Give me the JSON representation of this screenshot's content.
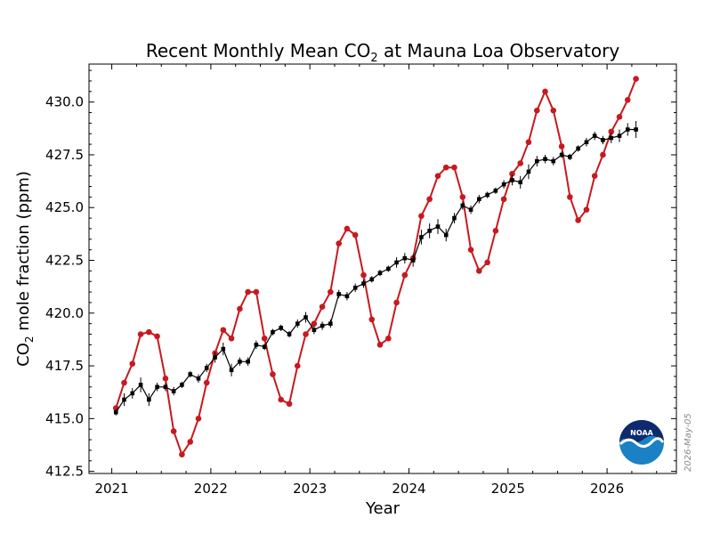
{
  "chart_data": {
    "type": "line",
    "title": {
      "prefix": "Recent Monthly Mean CO",
      "subscript": "2",
      "suffix": " at Mauna Loa Observatory"
    },
    "xlabel": "Year",
    "ylabel": {
      "prefix": "CO",
      "subscript": "2",
      "suffix": " mole fraction (ppm)"
    },
    "xlim": [
      2020.77,
      2026.7
    ],
    "ylim": [
      412.4,
      431.8
    ],
    "x_ticks": [
      2021,
      2022,
      2023,
      2024,
      2025,
      2026
    ],
    "x_tick_labels": [
      "2021",
      "2022",
      "2023",
      "2024",
      "2025",
      "2026"
    ],
    "y_ticks": [
      412.5,
      415.0,
      417.5,
      420.0,
      422.5,
      425.0,
      427.5,
      430.0
    ],
    "y_tick_labels": [
      "412.5",
      "415.0",
      "417.5",
      "420.0",
      "422.5",
      "425.0",
      "427.5",
      "430.0"
    ],
    "grid": false,
    "legend": "none",
    "date_stamp": "2026-May-05",
    "logo_text": "NOAA",
    "series": [
      {
        "color": "#c8191e",
        "marker": "circle",
        "x": [
          2021.042,
          2021.125,
          2021.208,
          2021.292,
          2021.375,
          2021.458,
          2021.542,
          2021.625,
          2021.708,
          2021.792,
          2021.875,
          2021.958,
          2022.042,
          2022.125,
          2022.208,
          2022.292,
          2022.375,
          2022.458,
          2022.542,
          2022.625,
          2022.708,
          2022.792,
          2022.875,
          2022.958,
          2023.042,
          2023.125,
          2023.208,
          2023.292,
          2023.375,
          2023.458,
          2023.542,
          2023.625,
          2023.708,
          2023.792,
          2023.875,
          2023.958,
          2024.042,
          2024.125,
          2024.208,
          2024.292,
          2024.375,
          2024.458,
          2024.542,
          2024.625,
          2024.708,
          2024.792,
          2024.875,
          2024.958,
          2025.042,
          2025.125,
          2025.208,
          2025.292,
          2025.375,
          2025.458,
          2025.542,
          2025.625,
          2025.708,
          2025.792,
          2025.875,
          2025.958,
          2026.042,
          2026.125,
          2026.208,
          2026.292
        ],
        "values": [
          415.5,
          416.7,
          417.6,
          419.0,
          419.1,
          418.9,
          416.9,
          414.4,
          413.3,
          413.9,
          415.0,
          416.7,
          418.1,
          419.2,
          418.8,
          420.2,
          421.0,
          421.0,
          418.8,
          417.1,
          415.9,
          415.7,
          417.5,
          419.0,
          419.5,
          420.3,
          421.0,
          423.3,
          424.0,
          423.7,
          421.8,
          419.7,
          418.5,
          418.8,
          420.5,
          421.8,
          422.6,
          424.6,
          425.4,
          426.5,
          426.9,
          426.9,
          425.5,
          423.0,
          422.0,
          422.4,
          423.9,
          425.4,
          426.6,
          427.1,
          428.1,
          429.6,
          430.5,
          429.6,
          427.9,
          425.5,
          424.4,
          424.9,
          426.5,
          427.5,
          428.6,
          429.3,
          430.1,
          431.1
        ]
      },
      {
        "color": "#000000",
        "marker": "square",
        "x": [
          2021.042,
          2021.125,
          2021.208,
          2021.292,
          2021.375,
          2021.458,
          2021.542,
          2021.625,
          2021.708,
          2021.792,
          2021.875,
          2021.958,
          2022.042,
          2022.125,
          2022.208,
          2022.292,
          2022.375,
          2022.458,
          2022.542,
          2022.625,
          2022.708,
          2022.792,
          2022.875,
          2022.958,
          2023.042,
          2023.125,
          2023.208,
          2023.292,
          2023.375,
          2023.458,
          2023.542,
          2023.625,
          2023.708,
          2023.792,
          2023.875,
          2023.958,
          2024.042,
          2024.125,
          2024.208,
          2024.292,
          2024.375,
          2024.458,
          2024.542,
          2024.625,
          2024.708,
          2024.792,
          2024.875,
          2024.958,
          2025.042,
          2025.125,
          2025.208,
          2025.292,
          2025.375,
          2025.458,
          2025.542,
          2025.625,
          2025.708,
          2025.792,
          2025.875,
          2025.958,
          2026.042,
          2026.125,
          2026.208,
          2026.292
        ],
        "values": [
          415.3,
          415.9,
          416.2,
          416.6,
          415.9,
          416.5,
          416.5,
          416.3,
          416.6,
          417.1,
          416.9,
          417.4,
          417.9,
          418.3,
          417.3,
          417.7,
          417.7,
          418.5,
          418.4,
          419.1,
          419.3,
          419.0,
          419.5,
          419.8,
          419.2,
          419.4,
          419.5,
          420.9,
          420.8,
          421.2,
          421.4,
          421.6,
          421.9,
          422.1,
          422.4,
          422.6,
          422.5,
          423.6,
          423.9,
          424.1,
          423.7,
          424.5,
          425.1,
          424.9,
          425.4,
          425.6,
          425.8,
          426.1,
          426.3,
          426.2,
          426.7,
          427.2,
          427.3,
          427.2,
          427.5,
          427.4,
          427.8,
          428.1,
          428.4,
          428.2,
          428.3,
          428.4,
          428.7,
          428.7
        ],
        "uncertainty": [
          0.15,
          0.3,
          0.25,
          0.35,
          0.3,
          0.2,
          0.2,
          0.2,
          0.15,
          0.15,
          0.2,
          0.2,
          0.25,
          0.3,
          0.3,
          0.2,
          0.2,
          0.2,
          0.15,
          0.15,
          0.15,
          0.15,
          0.2,
          0.25,
          0.2,
          0.2,
          0.2,
          0.2,
          0.2,
          0.2,
          0.2,
          0.15,
          0.15,
          0.15,
          0.25,
          0.25,
          0.3,
          0.35,
          0.35,
          0.35,
          0.3,
          0.25,
          0.2,
          0.2,
          0.2,
          0.15,
          0.15,
          0.2,
          0.25,
          0.3,
          0.35,
          0.25,
          0.2,
          0.2,
          0.15,
          0.15,
          0.15,
          0.2,
          0.2,
          0.2,
          0.25,
          0.3,
          0.3,
          0.4
        ]
      }
    ]
  }
}
